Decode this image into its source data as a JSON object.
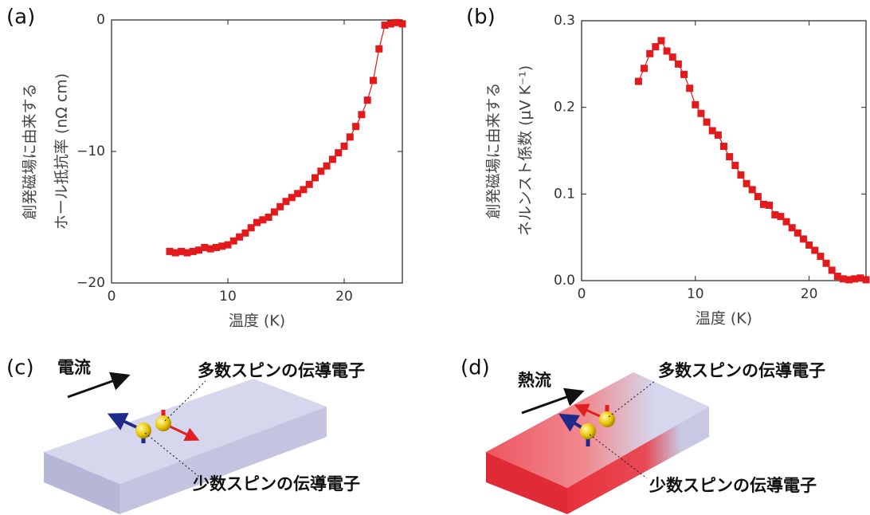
{
  "chart_data": [
    {
      "type": "line",
      "panel": "(a)",
      "xlabel": "温度 (K)",
      "ylabel": [
        "創発磁場に由来する",
        "ホール抵抗率 (nΩ cm)"
      ],
      "color": "#e31a1c",
      "x": [
        5,
        5.5,
        6,
        6.5,
        7,
        7.5,
        8,
        8.5,
        9,
        9.5,
        10,
        10.5,
        11,
        11.5,
        12,
        12.5,
        13,
        13.5,
        14,
        14.5,
        15,
        15.5,
        16,
        16.5,
        17,
        17.5,
        18,
        18.5,
        19,
        19.5,
        20,
        20.5,
        21,
        21.5,
        22,
        22.5,
        23,
        23.5,
        24,
        24.5,
        25
      ],
      "values": [
        -17.6,
        -17.7,
        -17.6,
        -17.7,
        -17.6,
        -17.5,
        -17.3,
        -17.4,
        -17.3,
        -17.2,
        -17.1,
        -16.8,
        -16.5,
        -16.2,
        -15.8,
        -15.4,
        -15.2,
        -15.0,
        -14.6,
        -14.2,
        -13.8,
        -13.5,
        -13.2,
        -12.9,
        -12.5,
        -12.0,
        -11.5,
        -11.1,
        -10.6,
        -10.1,
        -9.6,
        -8.9,
        -8.1,
        -7.2,
        -6.1,
        -4.6,
        -2.2,
        -0.4,
        -0.3,
        -0.2,
        -0.3
      ],
      "xlim": [
        0,
        25
      ],
      "xticks": [
        0,
        10,
        20
      ],
      "ylim": [
        -20,
        0
      ],
      "yticks": [
        {
          "value": -20,
          "label": "−20"
        },
        {
          "value": -10,
          "label": "−10"
        },
        0
      ]
    },
    {
      "type": "line",
      "panel": "(b)",
      "xlabel": "温度 (K)",
      "ylabel": [
        "創発磁場に由来する",
        "ネルンスト係数 (μV K⁻¹)"
      ],
      "color": "#e31a1c",
      "x": [
        5,
        5.5,
        6,
        6.5,
        7,
        7.5,
        8,
        8.5,
        9,
        9.5,
        10,
        10.5,
        11,
        11.5,
        12,
        12.5,
        13,
        13.5,
        14,
        14.5,
        15,
        15.5,
        16,
        16.5,
        17,
        17.5,
        18,
        18.5,
        19,
        19.5,
        20,
        20.5,
        21,
        21.5,
        22,
        22.5,
        23,
        23.5,
        24,
        24.5,
        25
      ],
      "values": [
        0.23,
        0.245,
        0.262,
        0.27,
        0.277,
        0.265,
        0.258,
        0.25,
        0.238,
        0.222,
        0.203,
        0.193,
        0.183,
        0.173,
        0.168,
        0.155,
        0.143,
        0.133,
        0.122,
        0.112,
        0.105,
        0.097,
        0.088,
        0.087,
        0.076,
        0.074,
        0.068,
        0.061,
        0.055,
        0.048,
        0.041,
        0.035,
        0.028,
        0.02,
        0.012,
        0.005,
        0.002,
        0.001,
        0.002,
        0.003,
        0.001
      ],
      "xlim": [
        0,
        25
      ],
      "xticks": [
        0,
        10,
        20
      ],
      "ylim": [
        0,
        0.3
      ],
      "yticks": [
        {
          "value": 0,
          "label": "0.0"
        },
        0.1,
        0.2,
        0.3
      ]
    }
  ],
  "diagrams": [
    {
      "panel": "(c)",
      "flow": "電流",
      "majority": "多数スピンの伝導電子",
      "minority": "少数スピンの伝導電子"
    },
    {
      "panel": "(d)",
      "flow": "熱流",
      "majority": "多数スピンの伝導電子",
      "minority": "少数スピンの伝導電子"
    }
  ]
}
